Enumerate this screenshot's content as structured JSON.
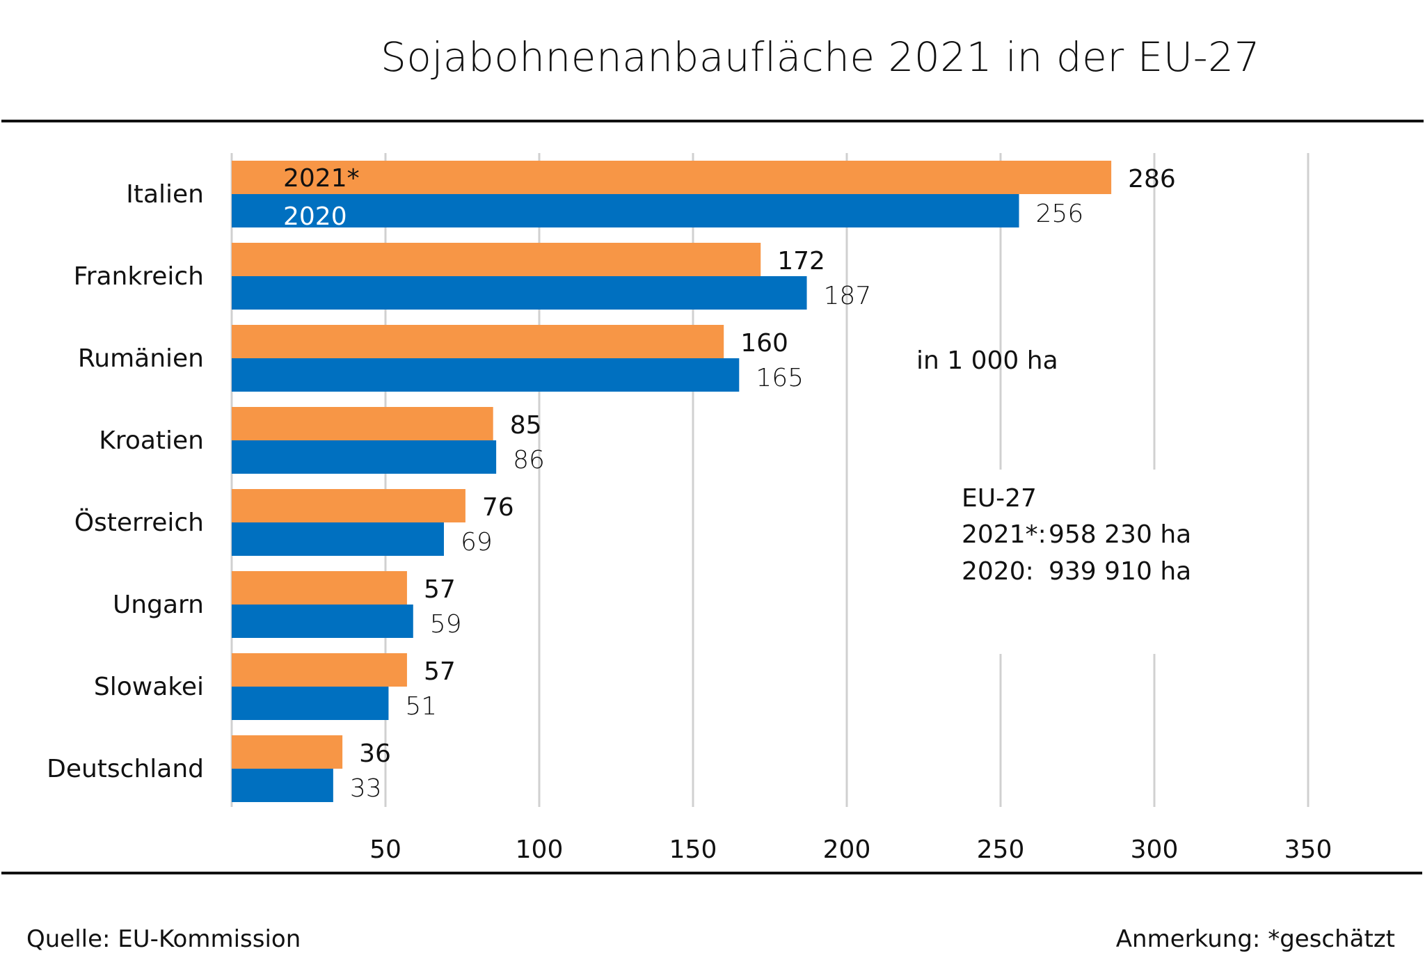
{
  "chart_data": {
    "type": "bar",
    "orientation": "horizontal",
    "title": "Sojabohnenanbaufläche  2021 in der EU-27",
    "unit_label": "in 1 000  ha",
    "categories": [
      "Italien",
      "Frankreich",
      "Rumänien",
      "Kroatien",
      "Österreich",
      "Ungarn",
      "Slowakei",
      "Deutschland"
    ],
    "series": [
      {
        "name": "2021*",
        "color": "#F79646",
        "values": [
          286,
          172,
          160,
          85,
          76,
          57,
          57,
          36
        ]
      },
      {
        "name": "2020",
        "color": "#0070C0",
        "values": [
          256,
          187,
          165,
          86,
          69,
          59,
          51,
          33
        ]
      }
    ],
    "xticks": [
      "50",
      "100",
      "150",
      "200",
      "250",
      "300",
      "350"
    ],
    "xlim": [
      0,
      350
    ],
    "grid": true,
    "legend": "inside-first-bars"
  },
  "eu": {
    "heading": "EU-27",
    "l1_label": "2021*:",
    "l1_value": "958  230  ha",
    "l2_label": "2020:",
    "l2_value": "939 910  ha"
  },
  "footer": {
    "source": "Quelle:  EU-Kommission",
    "note": "Anmerkung: *geschätzt"
  }
}
